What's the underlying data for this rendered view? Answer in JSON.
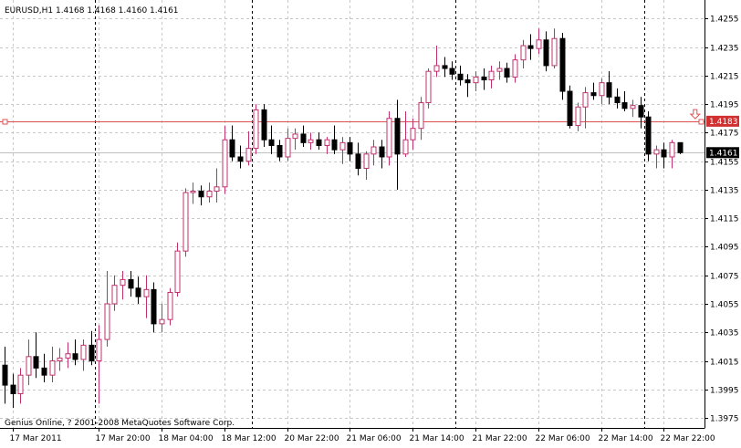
{
  "header": {
    "title": "EURUSD,H1  1.4168 1.4168 1.4160 1.4161"
  },
  "footer": {
    "copyright": "Genius Online, ? 2001-2008 MetaQuotes Software Corp."
  },
  "colors": {
    "background": "#ffffff",
    "grid": "#c8c8c8",
    "bull_candle": "#c0306e",
    "bear_candle": "#000000",
    "level_line": "#e05050",
    "level_label_bg": "#d03030",
    "bid_line": "#c0c0c0",
    "bid_label_bg": "#000000"
  },
  "chart_data": {
    "type": "candlestick",
    "symbol": "EURUSD",
    "timeframe": "H1",
    "ylim": [
      1.3968,
      1.4268
    ],
    "y_ticks": [
      "1.4255",
      "1.4235",
      "1.4215",
      "1.4195",
      "1.4175",
      "1.4155",
      "1.4135",
      "1.4115",
      "1.4095",
      "1.4075",
      "1.4055",
      "1.4035",
      "1.4015",
      "1.3995",
      "1.3975"
    ],
    "x_ticks": [
      {
        "label": "17 Mar 2011",
        "index": 1
      },
      {
        "label": "17 Mar 20:00",
        "index": 12
      },
      {
        "label": "18 Mar 04:00",
        "index": 20
      },
      {
        "label": "18 Mar 12:00",
        "index": 28
      },
      {
        "label": "20 Mar 22:00",
        "index": 36
      },
      {
        "label": "21 Mar 06:00",
        "index": 44
      },
      {
        "label": "21 Mar 14:00",
        "index": 52
      },
      {
        "label": "21 Mar 22:00",
        "index": 60
      },
      {
        "label": "22 Mar 06:00",
        "index": 68
      },
      {
        "label": "22 Mar 14:00",
        "index": 76
      },
      {
        "label": "22 Mar 22:00",
        "index": 84
      }
    ],
    "day_separators": [
      12,
      32,
      58,
      82
    ],
    "level_line": {
      "value": 1.4183,
      "label": "1.4183"
    },
    "bid_line": {
      "value": 1.4161,
      "label": "1.4161"
    },
    "arrow_marker": {
      "index": 88,
      "value": 1.4188
    },
    "candles": [
      {
        "o": 1.4012,
        "h": 1.4025,
        "l": 1.3985,
        "c": 1.3998
      },
      {
        "o": 1.3998,
        "h": 1.4006,
        "l": 1.3982,
        "c": 1.3992
      },
      {
        "o": 1.3992,
        "h": 1.401,
        "l": 1.3985,
        "c": 1.4005
      },
      {
        "o": 1.4005,
        "h": 1.403,
        "l": 1.3998,
        "c": 1.4018
      },
      {
        "o": 1.4018,
        "h": 1.4035,
        "l": 1.4003,
        "c": 1.401
      },
      {
        "o": 1.401,
        "h": 1.402,
        "l": 1.4,
        "c": 1.4005
      },
      {
        "o": 1.4005,
        "h": 1.4025,
        "l": 1.4,
        "c": 1.4015
      },
      {
        "o": 1.4015,
        "h": 1.4024,
        "l": 1.4008,
        "c": 1.4017
      },
      {
        "o": 1.4017,
        "h": 1.4028,
        "l": 1.401,
        "c": 1.402
      },
      {
        "o": 1.402,
        "h": 1.403,
        "l": 1.4012,
        "c": 1.4016
      },
      {
        "o": 1.4016,
        "h": 1.403,
        "l": 1.4008,
        "c": 1.4026
      },
      {
        "o": 1.4026,
        "h": 1.4036,
        "l": 1.4012,
        "c": 1.4015
      },
      {
        "o": 1.4015,
        "h": 1.404,
        "l": 1.3985,
        "c": 1.403
      },
      {
        "o": 1.403,
        "h": 1.4078,
        "l": 1.4025,
        "c": 1.4055
      },
      {
        "o": 1.4055,
        "h": 1.4075,
        "l": 1.405,
        "c": 1.4068
      },
      {
        "o": 1.4068,
        "h": 1.4078,
        "l": 1.4058,
        "c": 1.4072
      },
      {
        "o": 1.4072,
        "h": 1.4078,
        "l": 1.406,
        "c": 1.4066
      },
      {
        "o": 1.4066,
        "h": 1.4074,
        "l": 1.4055,
        "c": 1.406
      },
      {
        "o": 1.406,
        "h": 1.4075,
        "l": 1.4045,
        "c": 1.4065
      },
      {
        "o": 1.4065,
        "h": 1.407,
        "l": 1.4035,
        "c": 1.4041
      },
      {
        "o": 1.4041,
        "h": 1.4055,
        "l": 1.4035,
        "c": 1.4044
      },
      {
        "o": 1.4044,
        "h": 1.4066,
        "l": 1.404,
        "c": 1.4063
      },
      {
        "o": 1.4063,
        "h": 1.4098,
        "l": 1.406,
        "c": 1.4092
      },
      {
        "o": 1.4092,
        "h": 1.4136,
        "l": 1.4088,
        "c": 1.4133
      },
      {
        "o": 1.4133,
        "h": 1.414,
        "l": 1.4125,
        "c": 1.4134
      },
      {
        "o": 1.4134,
        "h": 1.4138,
        "l": 1.4124,
        "c": 1.413
      },
      {
        "o": 1.413,
        "h": 1.414,
        "l": 1.4126,
        "c": 1.4134
      },
      {
        "o": 1.4134,
        "h": 1.415,
        "l": 1.4126,
        "c": 1.4137
      },
      {
        "o": 1.4137,
        "h": 1.418,
        "l": 1.4132,
        "c": 1.417
      },
      {
        "o": 1.417,
        "h": 1.418,
        "l": 1.4155,
        "c": 1.4158
      },
      {
        "o": 1.4158,
        "h": 1.4166,
        "l": 1.415,
        "c": 1.4155
      },
      {
        "o": 1.4155,
        "h": 1.4176,
        "l": 1.4152,
        "c": 1.4164
      },
      {
        "o": 1.4164,
        "h": 1.4195,
        "l": 1.416,
        "c": 1.4191
      },
      {
        "o": 1.4191,
        "h": 1.4195,
        "l": 1.4165,
        "c": 1.417
      },
      {
        "o": 1.417,
        "h": 1.418,
        "l": 1.416,
        "c": 1.4166
      },
      {
        "o": 1.4166,
        "h": 1.417,
        "l": 1.4155,
        "c": 1.4158
      },
      {
        "o": 1.4158,
        "h": 1.4178,
        "l": 1.4155,
        "c": 1.4171
      },
      {
        "o": 1.4171,
        "h": 1.4178,
        "l": 1.4163,
        "c": 1.4174
      },
      {
        "o": 1.4174,
        "h": 1.418,
        "l": 1.4165,
        "c": 1.4168
      },
      {
        "o": 1.4168,
        "h": 1.4175,
        "l": 1.4163,
        "c": 1.417
      },
      {
        "o": 1.417,
        "h": 1.4175,
        "l": 1.4163,
        "c": 1.4166
      },
      {
        "o": 1.4166,
        "h": 1.4172,
        "l": 1.416,
        "c": 1.417
      },
      {
        "o": 1.417,
        "h": 1.418,
        "l": 1.416,
        "c": 1.4163
      },
      {
        "o": 1.4163,
        "h": 1.4172,
        "l": 1.4153,
        "c": 1.4168
      },
      {
        "o": 1.4168,
        "h": 1.4172,
        "l": 1.4155,
        "c": 1.416
      },
      {
        "o": 1.416,
        "h": 1.4168,
        "l": 1.4145,
        "c": 1.415
      },
      {
        "o": 1.415,
        "h": 1.4162,
        "l": 1.4142,
        "c": 1.416
      },
      {
        "o": 1.416,
        "h": 1.417,
        "l": 1.4152,
        "c": 1.4165
      },
      {
        "o": 1.4165,
        "h": 1.417,
        "l": 1.415,
        "c": 1.4158
      },
      {
        "o": 1.4158,
        "h": 1.419,
        "l": 1.4152,
        "c": 1.4185
      },
      {
        "o": 1.4185,
        "h": 1.4198,
        "l": 1.4135,
        "c": 1.416
      },
      {
        "o": 1.416,
        "h": 1.419,
        "l": 1.4158,
        "c": 1.417
      },
      {
        "o": 1.417,
        "h": 1.4185,
        "l": 1.4163,
        "c": 1.4178
      },
      {
        "o": 1.4178,
        "h": 1.42,
        "l": 1.417,
        "c": 1.4196
      },
      {
        "o": 1.4196,
        "h": 1.422,
        "l": 1.4192,
        "c": 1.4218
      },
      {
        "o": 1.4218,
        "h": 1.4236,
        "l": 1.4214,
        "c": 1.4222
      },
      {
        "o": 1.4222,
        "h": 1.4228,
        "l": 1.4214,
        "c": 1.422
      },
      {
        "o": 1.422,
        "h": 1.4225,
        "l": 1.4212,
        "c": 1.4216
      },
      {
        "o": 1.4216,
        "h": 1.4222,
        "l": 1.4208,
        "c": 1.4212
      },
      {
        "o": 1.4212,
        "h": 1.4216,
        "l": 1.42,
        "c": 1.421
      },
      {
        "o": 1.421,
        "h": 1.4218,
        "l": 1.4204,
        "c": 1.4214
      },
      {
        "o": 1.4214,
        "h": 1.422,
        "l": 1.4205,
        "c": 1.4212
      },
      {
        "o": 1.4212,
        "h": 1.4222,
        "l": 1.4206,
        "c": 1.4218
      },
      {
        "o": 1.4218,
        "h": 1.4225,
        "l": 1.4212,
        "c": 1.422
      },
      {
        "o": 1.422,
        "h": 1.4224,
        "l": 1.421,
        "c": 1.4214
      },
      {
        "o": 1.4214,
        "h": 1.423,
        "l": 1.421,
        "c": 1.4226
      },
      {
        "o": 1.4226,
        "h": 1.424,
        "l": 1.422,
        "c": 1.4236
      },
      {
        "o": 1.4236,
        "h": 1.4244,
        "l": 1.4226,
        "c": 1.4234
      },
      {
        "o": 1.4234,
        "h": 1.4248,
        "l": 1.423,
        "c": 1.424
      },
      {
        "o": 1.424,
        "h": 1.4246,
        "l": 1.4218,
        "c": 1.4222
      },
      {
        "o": 1.4222,
        "h": 1.4248,
        "l": 1.422,
        "c": 1.4241
      },
      {
        "o": 1.4241,
        "h": 1.4245,
        "l": 1.4198,
        "c": 1.4204
      },
      {
        "o": 1.4204,
        "h": 1.4208,
        "l": 1.4178,
        "c": 1.418
      },
      {
        "o": 1.418,
        "h": 1.4196,
        "l": 1.4176,
        "c": 1.4193
      },
      {
        "o": 1.4193,
        "h": 1.4207,
        "l": 1.4178,
        "c": 1.4203
      },
      {
        "o": 1.4203,
        "h": 1.421,
        "l": 1.4198,
        "c": 1.4201
      },
      {
        "o": 1.4201,
        "h": 1.4213,
        "l": 1.4195,
        "c": 1.421
      },
      {
        "o": 1.421,
        "h": 1.4218,
        "l": 1.4195,
        "c": 1.42
      },
      {
        "o": 1.42,
        "h": 1.4206,
        "l": 1.4192,
        "c": 1.4196
      },
      {
        "o": 1.4196,
        "h": 1.4204,
        "l": 1.419,
        "c": 1.4192
      },
      {
        "o": 1.4192,
        "h": 1.4198,
        "l": 1.4186,
        "c": 1.4194
      },
      {
        "o": 1.4194,
        "h": 1.42,
        "l": 1.4178,
        "c": 1.4186
      },
      {
        "o": 1.4186,
        "h": 1.419,
        "l": 1.4155,
        "c": 1.416
      },
      {
        "o": 1.416,
        "h": 1.4166,
        "l": 1.415,
        "c": 1.4163
      },
      {
        "o": 1.4163,
        "h": 1.4168,
        "l": 1.415,
        "c": 1.4158
      },
      {
        "o": 1.4158,
        "h": 1.417,
        "l": 1.415,
        "c": 1.4168
      },
      {
        "o": 1.4168,
        "h": 1.4168,
        "l": 1.416,
        "c": 1.4161
      }
    ]
  }
}
